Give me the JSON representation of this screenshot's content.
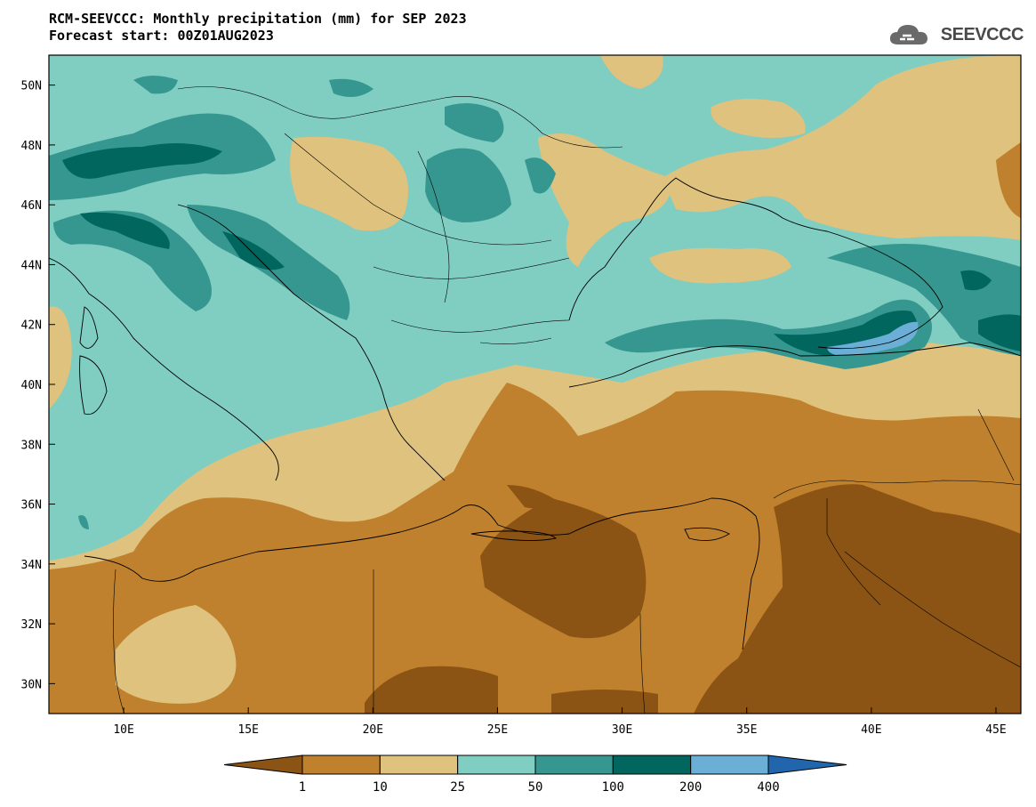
{
  "header": {
    "title_line1": "RCM-SEEVCCC: Monthly precipitation (mm) for SEP 2023",
    "title_line2": "Forecast start: 00Z01AUG2023"
  },
  "logo": {
    "text": "SEEVCCC",
    "icon": "cloud-icon"
  },
  "map": {
    "lon_range": [
      7,
      46
    ],
    "lat_range": [
      29,
      51
    ],
    "x_ticks": [
      {
        "lon": 10,
        "label": "10E"
      },
      {
        "lon": 15,
        "label": "15E"
      },
      {
        "lon": 20,
        "label": "20E"
      },
      {
        "lon": 25,
        "label": "25E"
      },
      {
        "lon": 30,
        "label": "30E"
      },
      {
        "lon": 35,
        "label": "35E"
      },
      {
        "lon": 40,
        "label": "40E"
      },
      {
        "lon": 45,
        "label": "45E"
      }
    ],
    "y_ticks": [
      {
        "lat": 50,
        "label": "50N"
      },
      {
        "lat": 48,
        "label": "48N"
      },
      {
        "lat": 46,
        "label": "46N"
      },
      {
        "lat": 44,
        "label": "44N"
      },
      {
        "lat": 42,
        "label": "42N"
      },
      {
        "lat": 40,
        "label": "40N"
      },
      {
        "lat": 38,
        "label": "38N"
      },
      {
        "lat": 36,
        "label": "36N"
      },
      {
        "lat": 34,
        "label": "34N"
      },
      {
        "lat": 32,
        "label": "32N"
      },
      {
        "lat": 30,
        "label": "30N"
      }
    ]
  },
  "colorbar": {
    "labels": [
      "1",
      "10",
      "25",
      "50",
      "100",
      "200",
      "400"
    ],
    "colors": [
      "#8c5414",
      "#bf812d",
      "#dfc27d",
      "#80cdc1",
      "#35978f",
      "#01665e",
      "#6baed6",
      "#2166ac"
    ]
  }
}
